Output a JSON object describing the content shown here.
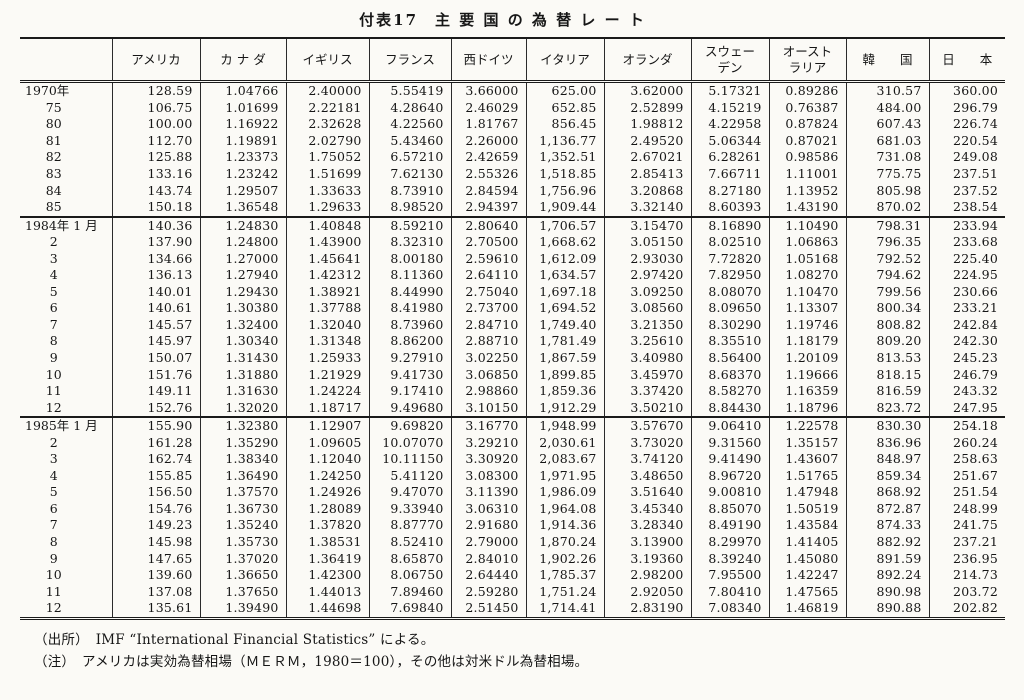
{
  "page": {
    "title": "付表17　主 要 国 の 為 替 レ ー ト"
  },
  "table": {
    "corner_label": "",
    "columns": [
      "アメリカ",
      "カ ナ ダ",
      "イギリス",
      "フランス",
      "西ドイツ",
      "イタリア",
      "オランダ",
      "スウェー\nデン",
      "オースト\nラリア",
      "韓　　国",
      "日　　本"
    ],
    "sections": [
      {
        "name": "years",
        "rows": [
          {
            "label": "1970年",
            "values": [
              "128.59",
              "1.04766",
              "2.40000",
              "5.55419",
              "3.66000",
              "625.00",
              "3.62000",
              "5.17321",
              "0.89286",
              "310.57",
              "360.00"
            ]
          },
          {
            "label": "75",
            "values": [
              "106.75",
              "1.01699",
              "2.22181",
              "4.28640",
              "2.46029",
              "652.85",
              "2.52899",
              "4.15219",
              "0.76387",
              "484.00",
              "296.79"
            ]
          },
          {
            "label": "80",
            "values": [
              "100.00",
              "1.16922",
              "2.32628",
              "4.22560",
              "1.81767",
              "856.45",
              "1.98812",
              "4.22958",
              "0.87824",
              "607.43",
              "226.74"
            ]
          },
          {
            "label": "81",
            "values": [
              "112.70",
              "1.19891",
              "2.02790",
              "5.43460",
              "2.26000",
              "1,136.77",
              "2.49520",
              "5.06344",
              "0.87021",
              "681.03",
              "220.54"
            ]
          },
          {
            "label": "82",
            "values": [
              "125.88",
              "1.23373",
              "1.75052",
              "6.57210",
              "2.42659",
              "1,352.51",
              "2.67021",
              "6.28261",
              "0.98586",
              "731.08",
              "249.08"
            ]
          },
          {
            "label": "83",
            "values": [
              "133.16",
              "1.23242",
              "1.51699",
              "7.62130",
              "2.55326",
              "1,518.85",
              "2.85413",
              "7.66711",
              "1.11001",
              "775.75",
              "237.51"
            ]
          },
          {
            "label": "84",
            "values": [
              "143.74",
              "1.29507",
              "1.33633",
              "8.73910",
              "2.84594",
              "1,756.96",
              "3.20868",
              "8.27180",
              "1.13952",
              "805.98",
              "237.52"
            ]
          },
          {
            "label": "85",
            "values": [
              "150.18",
              "1.36548",
              "1.29633",
              "8.98520",
              "2.94397",
              "1,909.44",
              "3.32140",
              "8.60393",
              "1.43190",
              "870.02",
              "238.54"
            ]
          }
        ]
      },
      {
        "name": "1984-monthly",
        "rows": [
          {
            "label": "1984年 1 月",
            "values": [
              "140.36",
              "1.24830",
              "1.40848",
              "8.59210",
              "2.80640",
              "1,706.57",
              "3.15470",
              "8.16890",
              "1.10490",
              "798.31",
              "233.94"
            ]
          },
          {
            "label": "2",
            "values": [
              "137.90",
              "1.24800",
              "1.43900",
              "8.32310",
              "2.70500",
              "1,668.62",
              "3.05150",
              "8.02510",
              "1.06863",
              "796.35",
              "233.68"
            ]
          },
          {
            "label": "3",
            "values": [
              "134.66",
              "1.27000",
              "1.45641",
              "8.00180",
              "2.59610",
              "1,612.09",
              "2.93030",
              "7.72820",
              "1.05168",
              "792.52",
              "225.40"
            ]
          },
          {
            "label": "4",
            "values": [
              "136.13",
              "1.27940",
              "1.42312",
              "8.11360",
              "2.64110",
              "1,634.57",
              "2.97420",
              "7.82950",
              "1.08270",
              "794.62",
              "224.95"
            ]
          },
          {
            "label": "5",
            "values": [
              "140.01",
              "1.29430",
              "1.38921",
              "8.44990",
              "2.75040",
              "1,697.18",
              "3.09250",
              "8.08070",
              "1.10470",
              "799.56",
              "230.66"
            ]
          },
          {
            "label": "6",
            "values": [
              "140.61",
              "1.30380",
              "1.37788",
              "8.41980",
              "2.73700",
              "1,694.52",
              "3.08560",
              "8.09650",
              "1.13307",
              "800.34",
              "233.21"
            ]
          },
          {
            "label": "7",
            "values": [
              "145.57",
              "1.32400",
              "1.32040",
              "8.73960",
              "2.84710",
              "1,749.40",
              "3.21350",
              "8.30290",
              "1.19746",
              "808.82",
              "242.84"
            ]
          },
          {
            "label": "8",
            "values": [
              "145.97",
              "1.30340",
              "1.31348",
              "8.86200",
              "2.88710",
              "1,781.49",
              "3.25610",
              "8.35510",
              "1.18179",
              "809.20",
              "242.30"
            ]
          },
          {
            "label": "9",
            "values": [
              "150.07",
              "1.31430",
              "1.25933",
              "9.27910",
              "3.02250",
              "1,867.59",
              "3.40980",
              "8.56400",
              "1.20109",
              "813.53",
              "245.23"
            ]
          },
          {
            "label": "10",
            "values": [
              "151.76",
              "1.31880",
              "1.21929",
              "9.41730",
              "3.06850",
              "1,899.85",
              "3.45970",
              "8.68370",
              "1.19666",
              "818.15",
              "246.79"
            ]
          },
          {
            "label": "11",
            "values": [
              "149.11",
              "1.31630",
              "1.24224",
              "9.17410",
              "2.98860",
              "1,859.36",
              "3.37420",
              "8.58270",
              "1.16359",
              "816.59",
              "243.32"
            ]
          },
          {
            "label": "12",
            "values": [
              "152.76",
              "1.32020",
              "1.18717",
              "9.49680",
              "3.10150",
              "1,912.29",
              "3.50210",
              "8.84430",
              "1.18796",
              "823.72",
              "247.95"
            ]
          }
        ]
      },
      {
        "name": "1985-monthly",
        "rows": [
          {
            "label": "1985年 1 月",
            "values": [
              "155.90",
              "1.32380",
              "1.12907",
              "9.69820",
              "3.16770",
              "1,948.99",
              "3.57670",
              "9.06410",
              "1.22578",
              "830.30",
              "254.18"
            ]
          },
          {
            "label": "2",
            "values": [
              "161.28",
              "1.35290",
              "1.09605",
              "10.07070",
              "3.29210",
              "2,030.61",
              "3.73020",
              "9.31560",
              "1.35157",
              "836.96",
              "260.24"
            ]
          },
          {
            "label": "3",
            "values": [
              "162.74",
              "1.38340",
              "1.12040",
              "10.11150",
              "3.30920",
              "2,083.67",
              "3.74120",
              "9.41490",
              "1.43607",
              "848.97",
              "258.63"
            ]
          },
          {
            "label": "4",
            "values": [
              "155.85",
              "1.36490",
              "1.24250",
              "5.41120",
              "3.08300",
              "1,971.95",
              "3.48650",
              "8.96720",
              "1.51765",
              "859.34",
              "251.67"
            ]
          },
          {
            "label": "5",
            "values": [
              "156.50",
              "1.37570",
              "1.24926",
              "9.47070",
              "3.11390",
              "1,986.09",
              "3.51640",
              "9.00810",
              "1.47948",
              "868.92",
              "251.54"
            ]
          },
          {
            "label": "6",
            "values": [
              "154.76",
              "1.36730",
              "1.28089",
              "9.33940",
              "3.06310",
              "1,964.08",
              "3.45340",
              "8.85070",
              "1.50519",
              "872.87",
              "248.99"
            ]
          },
          {
            "label": "7",
            "values": [
              "149.23",
              "1.35240",
              "1.37820",
              "8.87770",
              "2.91680",
              "1,914.36",
              "3.28340",
              "8.49190",
              "1.43584",
              "874.33",
              "241.75"
            ]
          },
          {
            "label": "8",
            "values": [
              "145.98",
              "1.35730",
              "1.38531",
              "8.52410",
              "2.79000",
              "1,870.24",
              "3.13900",
              "8.29970",
              "1.41405",
              "882.92",
              "237.21"
            ]
          },
          {
            "label": "9",
            "values": [
              "147.65",
              "1.37020",
              "1.36419",
              "8.65870",
              "2.84010",
              "1,902.26",
              "3.19360",
              "8.39240",
              "1.45080",
              "891.59",
              "236.95"
            ]
          },
          {
            "label": "10",
            "values": [
              "139.60",
              "1.36650",
              "1.42300",
              "8.06750",
              "2.64440",
              "1,785.37",
              "2.98200",
              "7.95500",
              "1.42247",
              "892.24",
              "214.73"
            ]
          },
          {
            "label": "11",
            "values": [
              "137.08",
              "1.37650",
              "1.44013",
              "7.89460",
              "2.59280",
              "1,751.24",
              "2.92050",
              "7.80410",
              "1.47565",
              "890.98",
              "203.72"
            ]
          },
          {
            "label": "12",
            "values": [
              "135.61",
              "1.39490",
              "1.44698",
              "7.69840",
              "2.51450",
              "1,714.41",
              "2.83190",
              "7.08340",
              "1.46819",
              "890.88",
              "202.82"
            ]
          }
        ]
      }
    ]
  },
  "notes": {
    "source": "（出所）　IMF “International Financial Statistics” による。",
    "note": "（注）　アメリカは実効為替相場（ＭＥＲＭ，1980＝100），その他は対米ドル為替相場。"
  }
}
